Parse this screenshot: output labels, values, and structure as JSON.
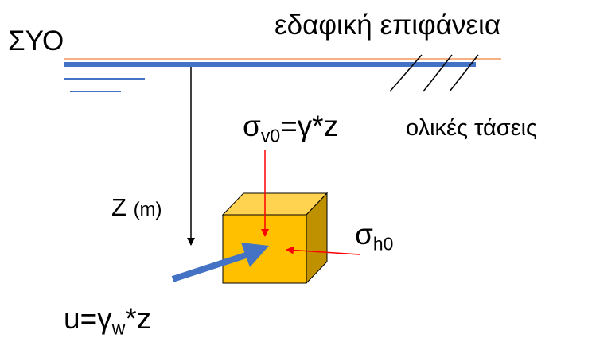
{
  "labels": {
    "water_table": "ΣΥΟ",
    "ground_surface": "εδαφική επιφάνεια",
    "sigma_v0": {
      "symbol": "σ",
      "subscript": "v0",
      "expression": "=γ*z"
    },
    "total_stresses": "ολικές τάσεις",
    "depth": {
      "symbol": "Z",
      "unit": "(m)"
    },
    "sigma_h0": {
      "symbol": "σ",
      "subscript": "h0"
    },
    "pore_pressure": {
      "prefix": "u=γ",
      "subscript": "w",
      "expression": "*z"
    }
  },
  "colors": {
    "ground_line": "#f4b183",
    "water_line": "#4472c4",
    "cube_front": "#ffc000",
    "cube_side": "#bf9000",
    "cube_top": "#ffd34f",
    "cube_edge": "#000000",
    "stress_arrow": "#ff0000",
    "pore_arrow": "#4472c4",
    "depth_arrow": "#000000"
  }
}
